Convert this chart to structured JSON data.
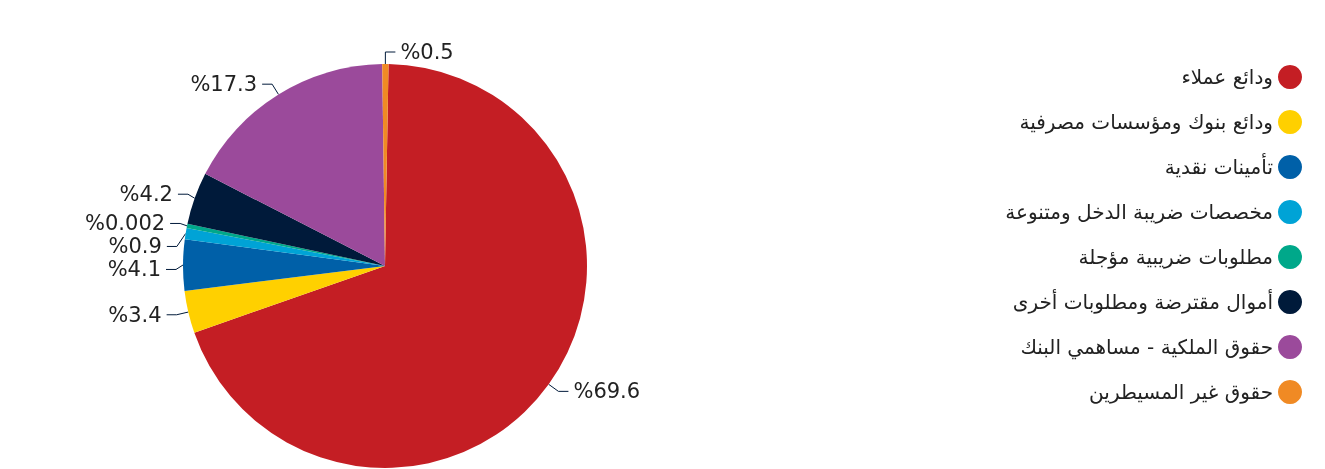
{
  "chart_data": {
    "type": "pie",
    "categories": [
      "ودائع عملاء",
      "ودائع بنوك ومؤسسات مصرفية",
      "تأمينات نقدية",
      "مخصصات ضريبة الدخل ومتنوعة",
      "مطلوبات ضريبية مؤجلة",
      "أموال مقترضة ومطلوبات أخرى",
      "حقوق الملكية - مساهمي البنك",
      "حقوق غير المسيطرين"
    ],
    "values": [
      69.6,
      3.4,
      4.1,
      0.9,
      0.002,
      4.2,
      17.3,
      0.5
    ],
    "value_labels": [
      "%69.6",
      "%3.4",
      "%4.1",
      "%0.9",
      "%0.002",
      "%4.2",
      "%17.3",
      "%0.5"
    ],
    "colors": [
      "#c41e24",
      "#ffd000",
      "#0060a8",
      "#00a3d6",
      "#00a88a",
      "#001a3a",
      "#9b4a9b",
      "#f08a24"
    ],
    "legend": "right"
  }
}
